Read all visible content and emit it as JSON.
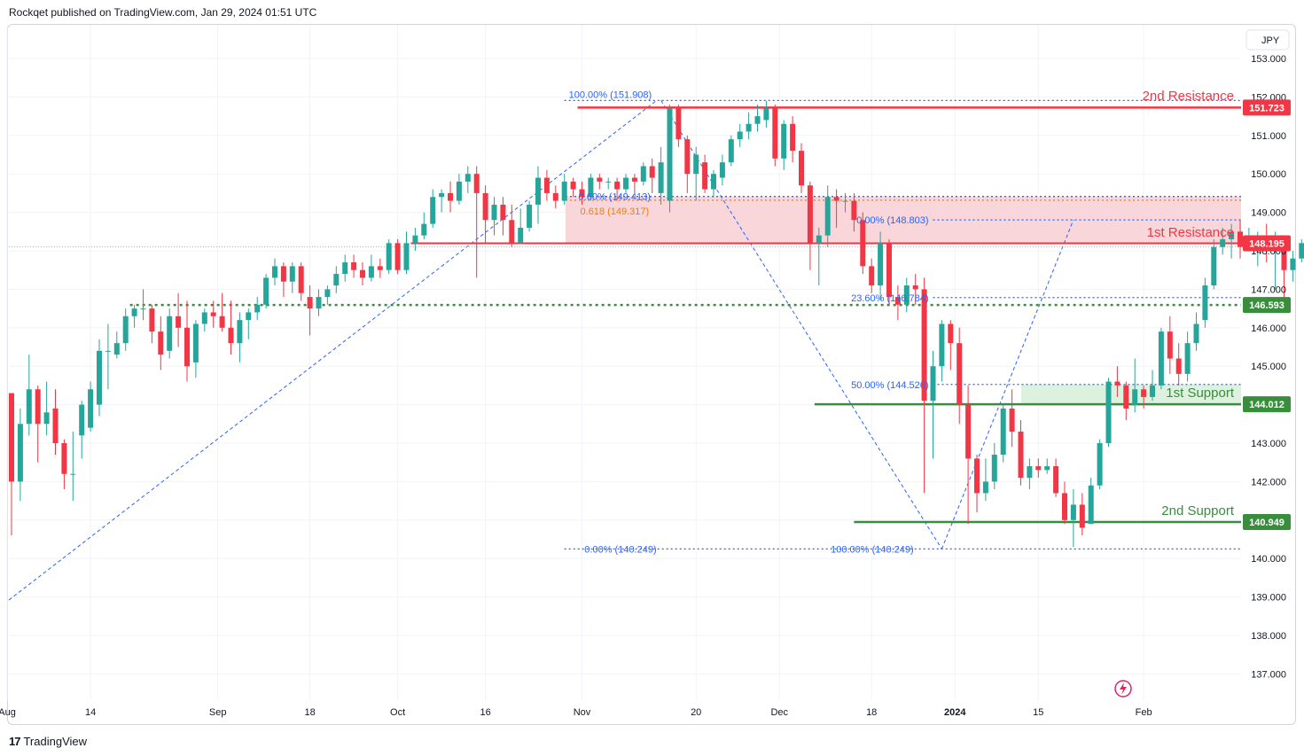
{
  "header": {
    "text": "Rockqet published on TradingView.com, Jan 29, 2024 01:51 UTC"
  },
  "footer": {
    "logo": "17",
    "brand": "TradingView"
  },
  "currency": "JPY",
  "colors": {
    "up": "#26a69a",
    "down": "#f23645",
    "resistance": "#f23645",
    "support": "#388e3c",
    "fib": "#2962ff",
    "fib_orange": "#f57c00",
    "zone_red": "#f8d2d6",
    "zone_green": "#d9efdc",
    "grid": "#f0f3fa",
    "text": "#131722"
  },
  "chart_data": {
    "type": "candlestick",
    "instrument_currency": "JPY",
    "ylim": [
      136.5,
      153.5
    ],
    "y_ticks": [
      "153.000",
      "152.000",
      "151.000",
      "150.000",
      "149.000",
      "148.000",
      "147.000",
      "146.000",
      "145.000",
      "144.000",
      "143.000",
      "142.000",
      "141.000",
      "140.000",
      "139.000",
      "138.000",
      "137.000"
    ],
    "x_ticks": [
      {
        "label": "Aug",
        "bar": -0.5
      },
      {
        "label": "14",
        "bar": 9
      },
      {
        "label": "Sep",
        "bar": 23.5
      },
      {
        "label": "18",
        "bar": 34
      },
      {
        "label": "Oct",
        "bar": 44
      },
      {
        "label": "16",
        "bar": 54
      },
      {
        "label": "Nov",
        "bar": 65
      },
      {
        "label": "20",
        "bar": 78
      },
      {
        "label": "Dec",
        "bar": 87.5
      },
      {
        "label": "18",
        "bar": 98
      },
      {
        "label": "2024",
        "bar": 107.5
      },
      {
        "label": "15",
        "bar": 117
      },
      {
        "label": "Feb",
        "bar": 129
      }
    ],
    "candles": [
      [
        144.3,
        142.0,
        144.3,
        140.6
      ],
      [
        142.0,
        143.5,
        143.9,
        141.5
      ],
      [
        143.5,
        144.4,
        145.3,
        143.2
      ],
      [
        144.4,
        143.5,
        144.5,
        142.5
      ],
      [
        143.5,
        143.8,
        144.6,
        143.2
      ],
      [
        143.9,
        143.0,
        144.4,
        142.7
      ],
      [
        143.0,
        142.2,
        143.1,
        141.8
      ],
      [
        142.2,
        142.2,
        143.3,
        141.5
      ],
      [
        143.2,
        144.0,
        144.1,
        142.6
      ],
      [
        143.4,
        144.4,
        144.6,
        143.3
      ],
      [
        144.0,
        145.4,
        145.7,
        143.7
      ],
      [
        145.4,
        145.4,
        146.1,
        144.4
      ],
      [
        145.3,
        145.6,
        145.9,
        145.2
      ],
      [
        145.6,
        146.3,
        146.5,
        145.4
      ],
      [
        146.3,
        146.5,
        146.6,
        146.0
      ],
      [
        146.5,
        146.5,
        147.0,
        146.2
      ],
      [
        146.5,
        145.9,
        146.6,
        145.6
      ],
      [
        145.9,
        145.3,
        146.3,
        144.9
      ],
      [
        145.4,
        146.3,
        146.5,
        145.2
      ],
      [
        146.3,
        146.0,
        146.9,
        145.5
      ],
      [
        146.0,
        145.0,
        146.7,
        144.6
      ],
      [
        145.1,
        146.1,
        146.2,
        144.7
      ],
      [
        146.1,
        146.4,
        146.5,
        145.9
      ],
      [
        146.4,
        146.3,
        146.7,
        146.0
      ],
      [
        146.3,
        146.0,
        146.9,
        145.9
      ],
      [
        146.0,
        145.6,
        146.7,
        145.3
      ],
      [
        145.6,
        146.2,
        146.4,
        145.1
      ],
      [
        146.2,
        146.4,
        146.5,
        145.7
      ],
      [
        146.4,
        146.6,
        146.8,
        146.2
      ],
      [
        146.6,
        147.3,
        147.4,
        146.5
      ],
      [
        147.3,
        147.6,
        147.8,
        147.1
      ],
      [
        147.6,
        147.2,
        147.7,
        146.8
      ],
      [
        147.2,
        147.6,
        147.7,
        146.9
      ],
      [
        147.6,
        146.9,
        147.7,
        146.7
      ],
      [
        146.8,
        146.5,
        147.1,
        145.8
      ],
      [
        146.5,
        146.8,
        147.0,
        146.3
      ],
      [
        146.8,
        147.0,
        147.1,
        146.6
      ],
      [
        147.1,
        147.4,
        147.6,
        146.9
      ],
      [
        147.4,
        147.7,
        147.9,
        147.2
      ],
      [
        147.7,
        147.5,
        147.9,
        147.3
      ],
      [
        147.5,
        147.3,
        147.7,
        147.1
      ],
      [
        147.3,
        147.6,
        147.9,
        147.2
      ],
      [
        147.6,
        147.5,
        147.8,
        147.3
      ],
      [
        147.5,
        148.2,
        148.3,
        147.4
      ],
      [
        148.2,
        147.5,
        148.3,
        147.4
      ],
      [
        147.5,
        148.2,
        148.5,
        147.4
      ],
      [
        148.2,
        148.4,
        148.6,
        148.0
      ],
      [
        148.4,
        148.7,
        149.0,
        148.3
      ],
      [
        148.7,
        149.4,
        149.6,
        148.6
      ],
      [
        149.4,
        149.5,
        149.6,
        149.0
      ],
      [
        149.5,
        149.3,
        149.8,
        149.0
      ],
      [
        149.3,
        149.8,
        150.0,
        149.2
      ],
      [
        149.8,
        150.0,
        150.2,
        149.5
      ],
      [
        150.0,
        149.5,
        150.2,
        147.3
      ],
      [
        149.5,
        148.8,
        149.7,
        148.2
      ],
      [
        148.8,
        149.2,
        149.4,
        148.4
      ],
      [
        149.2,
        148.8,
        149.4,
        148.4
      ],
      [
        148.8,
        148.2,
        149.2,
        148.1
      ],
      [
        148.2,
        148.6,
        149.1,
        148.2
      ],
      [
        148.6,
        149.2,
        149.3,
        148.5
      ]
    ],
    "candles_b": [
      [
        149.2,
        149.9,
        150.2,
        148.7
      ],
      [
        149.9,
        149.5,
        150.1,
        149.3
      ],
      [
        149.5,
        149.3,
        149.7,
        149.1
      ],
      [
        149.3,
        149.8,
        150.0,
        149.2
      ],
      [
        149.8,
        149.6,
        149.9,
        149.4
      ],
      [
        149.6,
        149.4,
        149.8,
        149.2
      ],
      [
        149.4,
        149.9,
        150.0,
        149.3
      ],
      [
        149.9,
        149.8,
        150.0,
        149.6
      ],
      [
        149.8,
        149.8,
        149.9,
        149.6
      ],
      [
        149.8,
        149.6,
        149.9,
        149.3
      ],
      [
        149.6,
        149.9,
        150.0,
        149.5
      ],
      [
        149.9,
        149.8,
        150.0,
        149.5
      ],
      [
        149.8,
        150.2,
        150.3,
        149.7
      ],
      [
        150.2,
        149.9,
        150.4,
        149.5
      ],
      [
        149.5,
        150.3,
        150.7,
        149.2
      ],
      [
        149.3,
        151.7,
        151.8,
        149.0
      ],
      [
        151.7,
        150.9,
        151.8,
        150.7
      ],
      [
        150.9,
        150.0,
        151.0,
        149.5
      ],
      [
        150.0,
        150.5,
        150.7,
        149.3
      ],
      [
        150.3,
        149.6,
        150.5,
        149.5
      ],
      [
        149.6,
        150.0,
        150.1,
        149.4
      ],
      [
        149.9,
        150.3,
        150.5,
        149.7
      ],
      [
        150.3,
        150.9,
        151.0,
        150.2
      ],
      [
        150.9,
        151.1,
        151.3,
        150.7
      ],
      [
        151.1,
        151.3,
        151.6,
        150.9
      ],
      [
        151.3,
        151.5,
        151.8,
        151.1
      ],
      [
        151.4,
        151.7,
        151.9,
        151.2
      ],
      [
        151.7,
        150.4,
        151.8,
        150.2
      ],
      [
        150.4,
        151.3,
        151.4,
        150.1
      ],
      [
        151.3,
        150.6,
        151.5,
        150.3
      ],
      [
        150.6,
        149.7,
        150.8,
        149.5
      ],
      [
        149.7,
        148.2,
        149.8,
        147.5
      ],
      [
        148.2,
        148.4,
        148.6,
        147.1
      ],
      [
        148.4,
        149.4,
        149.7,
        148.1
      ],
      [
        149.4,
        149.3,
        149.6,
        148.6
      ],
      [
        149.3,
        149.3,
        149.5,
        149.0
      ],
      [
        149.3,
        148.8,
        149.5,
        148.5
      ],
      [
        148.8,
        147.6,
        149.0,
        147.4
      ],
      [
        147.6,
        147.1,
        147.8,
        146.9
      ],
      [
        147.1,
        148.2,
        148.5,
        146.7
      ],
      [
        148.2,
        146.8,
        148.3,
        146.6
      ],
      [
        146.8,
        146.6,
        147.1,
        146.2
      ],
      [
        146.6,
        147.1,
        147.3,
        146.4
      ],
      [
        147.1,
        147.0,
        147.4,
        146.6
      ],
      [
        147.0,
        144.1,
        147.3,
        141.7
      ],
      [
        144.1,
        145.0,
        145.4,
        142.6
      ],
      [
        145.0,
        146.1,
        146.2,
        144.6
      ],
      [
        146.1,
        145.6,
        146.2,
        144.9
      ],
      [
        145.6,
        144.0,
        146.0,
        143.5
      ],
      [
        144.0,
        142.6,
        144.5,
        140.9
      ],
      [
        142.6,
        141.7,
        142.7,
        141.2
      ],
      [
        141.7,
        142.0,
        142.6,
        141.5
      ],
      [
        142.0,
        142.7,
        143.0,
        141.8
      ],
      [
        142.7,
        143.9,
        144.0,
        142.5
      ],
      [
        143.9,
        143.3,
        144.4,
        142.9
      ],
      [
        143.3,
        142.1,
        143.6,
        141.9
      ],
      [
        142.1,
        142.4,
        142.6,
        141.8
      ],
      [
        142.4,
        142.3,
        142.6,
        142.1
      ],
      [
        142.3,
        142.4,
        142.6,
        142.2
      ],
      [
        142.4,
        141.7,
        142.6,
        141.6
      ]
    ],
    "candles_c": [
      [
        141.7,
        141.0,
        142.0,
        140.9
      ],
      [
        141.0,
        141.4,
        141.8,
        140.3
      ],
      [
        141.4,
        140.8,
        141.7,
        140.6
      ],
      [
        140.9,
        141.9,
        142.1,
        140.9
      ],
      [
        141.9,
        143.0,
        143.1,
        141.8
      ],
      [
        143.0,
        144.6,
        144.7,
        142.9
      ],
      [
        144.6,
        144.5,
        145.0,
        144.2
      ],
      [
        144.5,
        143.9,
        144.6,
        143.6
      ],
      [
        144.0,
        144.4,
        145.2,
        143.8
      ],
      [
        144.4,
        144.2,
        144.5,
        143.9
      ],
      [
        144.2,
        144.5,
        144.9,
        144.1
      ],
      [
        144.5,
        145.9,
        146.0,
        144.4
      ],
      [
        145.9,
        145.2,
        146.3,
        144.8
      ],
      [
        145.2,
        144.8,
        145.6,
        144.5
      ],
      [
        144.8,
        145.6,
        145.9,
        144.6
      ],
      [
        145.6,
        146.1,
        146.4,
        145.4
      ],
      [
        146.2,
        147.1,
        147.3,
        146.0
      ],
      [
        147.1,
        148.1,
        148.3,
        147.0
      ],
      [
        148.1,
        148.3,
        148.6,
        147.9
      ],
      [
        148.3,
        148.5,
        148.7,
        147.8
      ],
      [
        148.5,
        148.1,
        148.8,
        147.8
      ],
      [
        148.1,
        148.4,
        148.6,
        148.0
      ],
      [
        148.3,
        148.4,
        148.5,
        147.6
      ],
      [
        148.4,
        148.0,
        148.7,
        147.7
      ],
      [
        148.0,
        148.3,
        148.5,
        147.0
      ],
      [
        148.3,
        147.5,
        148.4,
        146.7
      ],
      [
        147.5,
        147.8,
        148.0,
        147.2
      ],
      [
        147.8,
        148.2,
        148.3,
        147.7
      ]
    ],
    "horizontal_levels": [
      {
        "name": "2nd Resistance",
        "value": 151.723,
        "tag": "151.723"
      },
      {
        "name": "1st Resistance",
        "value": 148.195,
        "tag": "148.195"
      },
      {
        "tag": "146.593",
        "value": 146.593
      },
      {
        "name": "1st Support",
        "value": 144.012,
        "tag": "144.012"
      },
      {
        "name": "2nd Support",
        "value": 140.949,
        "tag": "140.949"
      }
    ],
    "fib_labels": [
      {
        "text": "100.00% (151.908)",
        "value": 151.908
      },
      {
        "text": "0.60% (149.413)",
        "value": 149.413
      },
      {
        "text": "0.618 (149.317)",
        "value": 149.317
      },
      {
        "text": "0.00% (148.803)",
        "value": 148.803
      },
      {
        "text": "23.60% (146.784)",
        "value": 146.784
      },
      {
        "text": "50.00% (144.526)",
        "value": 144.526
      },
      {
        "text": "0.00% (140.249)",
        "value": 140.249
      },
      {
        "text": "100.00% (140.249)",
        "value": 140.249
      }
    ],
    "last_price": 148.195
  },
  "annotations": {
    "res2": "2nd Resistance",
    "res1": "1st Resistance",
    "sup1": "1st Support",
    "sup2": "2nd Support"
  }
}
